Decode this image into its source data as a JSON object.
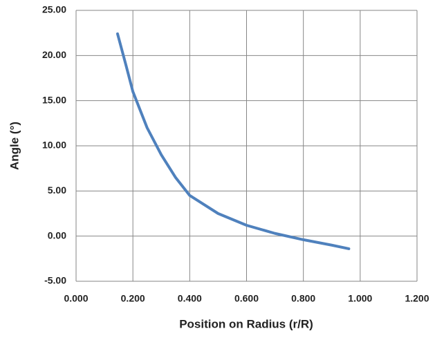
{
  "chart_data": {
    "type": "line",
    "x_label": "Position on Radius (r/R)",
    "y_label": "Angle (°)",
    "series": [
      {
        "color": "#4f81bd",
        "x": [
          0.146,
          0.175,
          0.2,
          0.25,
          0.3,
          0.35,
          0.4,
          0.5,
          0.6,
          0.7,
          0.8,
          0.9,
          0.96
        ],
        "values": [
          22.4,
          19.0,
          16.0,
          12.0,
          9.0,
          6.5,
          4.5,
          2.5,
          1.2,
          0.3,
          -0.4,
          -1.0,
          -1.4
        ]
      }
    ],
    "xlim": [
      0,
      1.2
    ],
    "xticks": [
      {
        "value": 0,
        "label": "0.000"
      },
      {
        "value": 0.2,
        "label": "0.200"
      },
      {
        "value": 0.4,
        "label": "0.400"
      },
      {
        "value": 0.6,
        "label": "0.600"
      },
      {
        "value": 0.8,
        "label": "0.800"
      },
      {
        "value": 1,
        "label": "1.000"
      },
      {
        "value": 1.2,
        "label": "1.200"
      }
    ],
    "ylim": [
      -5,
      25
    ],
    "yticks": [
      {
        "value": -5,
        "label": "-5.00"
      },
      {
        "value": 0,
        "label": "0.00"
      },
      {
        "value": 5,
        "label": "5.00"
      },
      {
        "value": 10,
        "label": "10.00"
      },
      {
        "value": 15,
        "label": "15.00"
      },
      {
        "value": 20,
        "label": "20.00"
      },
      {
        "value": 25,
        "label": "25.00"
      }
    ],
    "grid": true
  }
}
